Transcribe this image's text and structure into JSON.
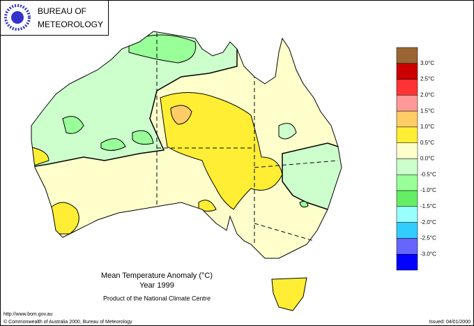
{
  "header": {
    "logo_line1": "BUREAU OF",
    "logo_line2": "METEOROLOGY"
  },
  "map": {
    "title": "Mean Temperature Anomaly (°C)",
    "subtitle": "Year 1999",
    "credit": "Product of the National Climate Centre"
  },
  "legend": {
    "colors": [
      "#996633",
      "#cc0000",
      "#ff3333",
      "#ff9999",
      "#ffcc66",
      "#ffee33",
      "#ffffcc",
      "#ccffcc",
      "#99ff99",
      "#66ee66",
      "#99ffff",
      "#33ccff",
      "#6666ff",
      "#0000ff"
    ],
    "labels": [
      "3.0°C",
      "2.5°C",
      "2.0°C",
      "1.5°C",
      "1.0°C",
      "0.5°C",
      "0.0°C",
      "-0.5°C",
      "-1.0°C",
      "-1.5°C",
      "-2.0°C",
      "-2.5°C",
      "-3.0°C"
    ]
  },
  "footer": {
    "url": "http://www.bom.gov.au",
    "copyright": "© Commonwealth of Australia 2000, Bureau of Meteorology",
    "issued": "Issued: 04/01/2000"
  }
}
